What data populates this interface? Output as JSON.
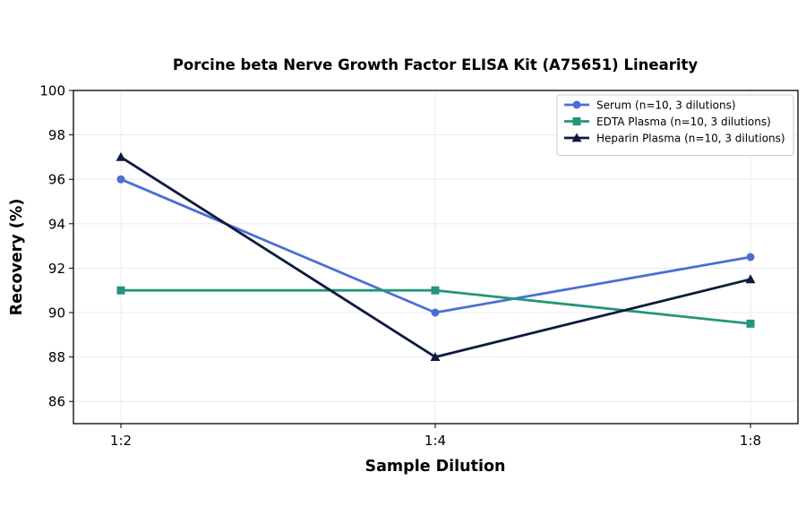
{
  "chart_data": {
    "type": "line",
    "title": "Porcine beta Nerve Growth Factor ELISA Kit (A75651) Linearity",
    "xlabel": "Sample Dilution",
    "ylabel": "Recovery (%)",
    "categories": [
      "1:2",
      "1:4",
      "1:8"
    ],
    "ylim": [
      85,
      100
    ],
    "yticks": [
      86,
      88,
      90,
      92,
      94,
      96,
      98,
      100
    ],
    "grid": true,
    "legend_position": "top-right",
    "series": [
      {
        "name": "Serum (n=10, 3 dilutions)",
        "values": [
          96,
          90,
          92.5
        ],
        "color": "#4a6fd4",
        "marker": "circle"
      },
      {
        "name": "EDTA Plasma (n=10, 3 dilutions)",
        "values": [
          91,
          91,
          89.5
        ],
        "color": "#23967a",
        "marker": "square"
      },
      {
        "name": "Heparin Plasma (n=10, 3 dilutions)",
        "values": [
          97,
          88,
          91.5
        ],
        "color": "#0c1a3f",
        "marker": "triangle"
      }
    ]
  }
}
